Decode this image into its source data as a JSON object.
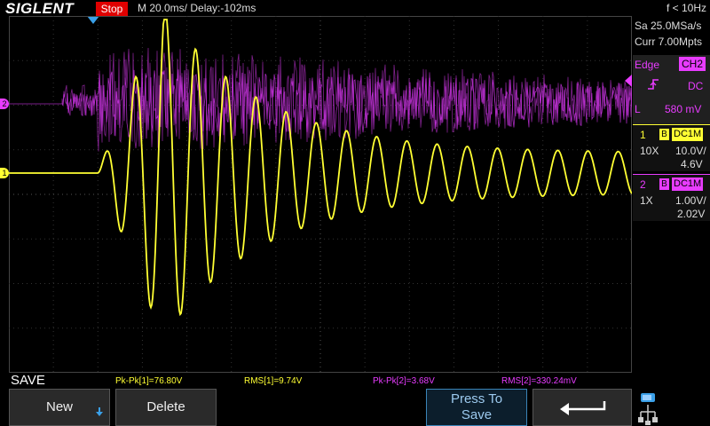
{
  "header": {
    "brand": "SIGLENT",
    "run_state": "Stop",
    "timebase": "M 20.0ms/ Delay:-102ms",
    "freq_counter": "f < 10Hz"
  },
  "acquisition": {
    "sample_rate": "Sa 25.0MSa/s",
    "memory_depth": "Curr 7.00Mpts"
  },
  "trigger": {
    "type": "Edge",
    "source": "CH2",
    "slope_icon": "rising-edge-icon",
    "coupling": "DC",
    "level_prefix": "L",
    "level": "580 mV"
  },
  "channels": [
    {
      "num": "1",
      "bw": "B",
      "coupling": "DC1M",
      "probe": "10X",
      "scale": "10.0V/",
      "offset": "4.6V",
      "color": "#ffff33"
    },
    {
      "num": "2",
      "bw": "B",
      "coupling": "DC1M",
      "probe": "1X",
      "scale": "1.00V/",
      "offset": "2.02V",
      "color": "#e83cff"
    }
  ],
  "markers": {
    "ch1": "1",
    "ch2": "2"
  },
  "measurements": [
    {
      "label": "Pk-Pk[1]=76.80V",
      "color": "#ffff33"
    },
    {
      "label": "RMS[1]=9.74V",
      "color": "#ffff33"
    },
    {
      "label": "Pk-Pk[2]=3.68V",
      "color": "#e83cff"
    },
    {
      "label": "RMS[2]=330.24mV",
      "color": "#e83cff"
    }
  ],
  "menu": {
    "title": "SAVE",
    "new_label": "New",
    "delete_label": "Delete",
    "press_to_save_line1": "Press To",
    "press_to_save_line2": "Save",
    "back_icon": "return-arrow-icon",
    "usb_icon": "usb-storage-icon"
  }
}
